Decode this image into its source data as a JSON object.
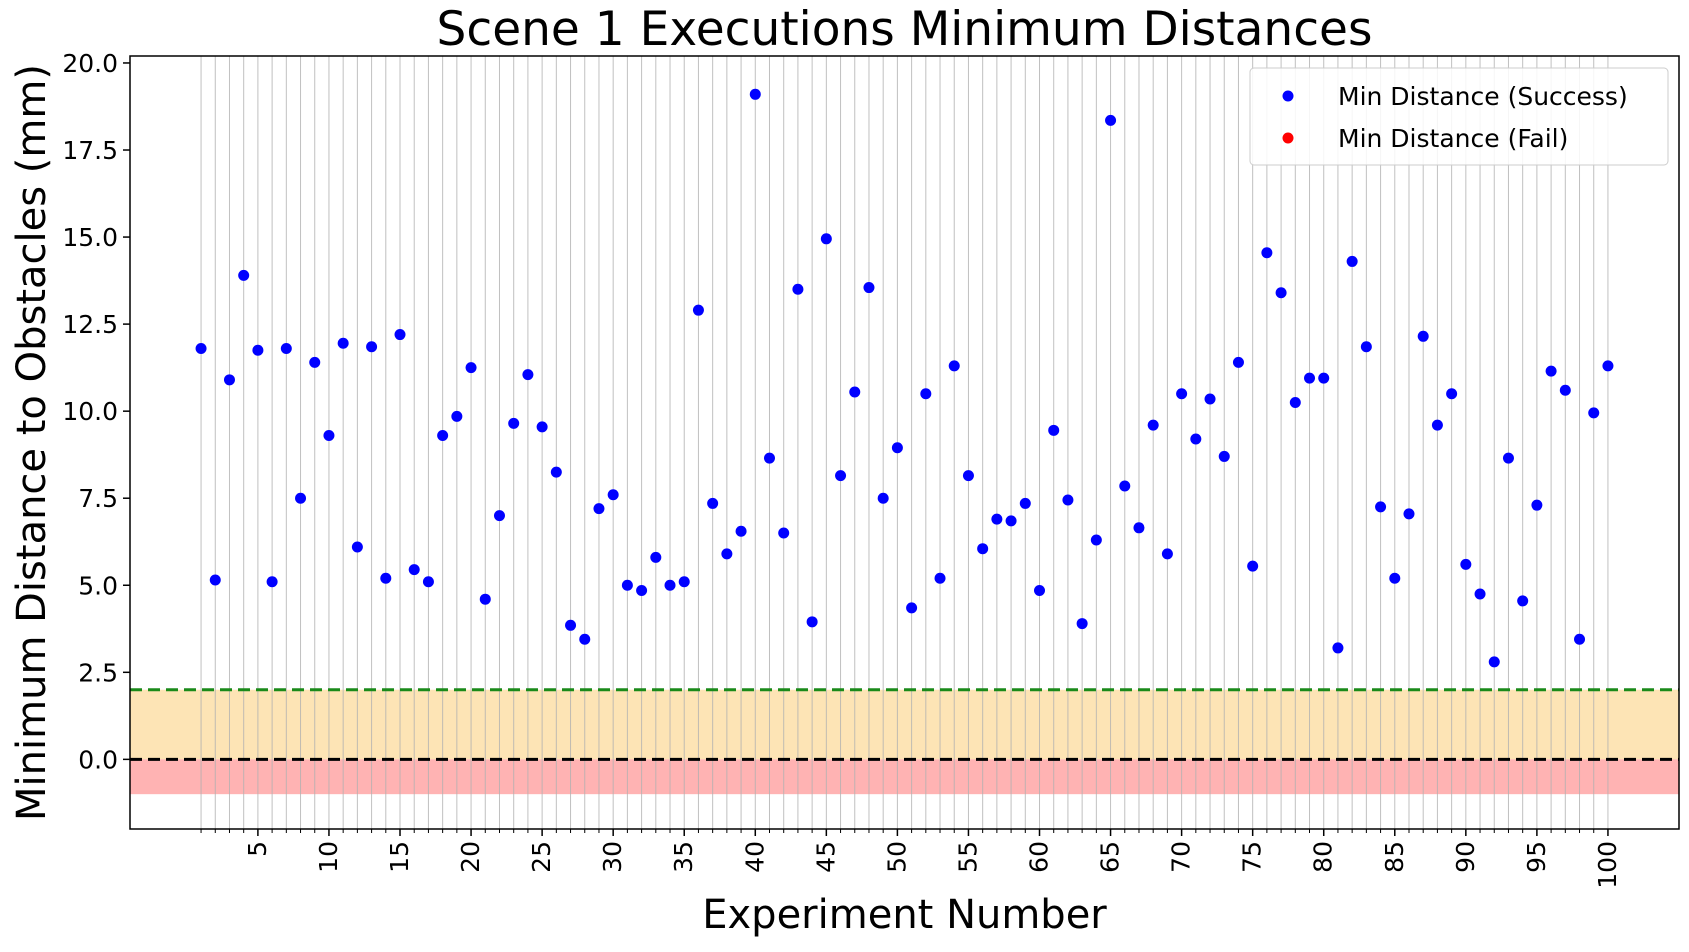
{
  "chart_data": {
    "type": "scatter",
    "title": "Scene 1 Executions Minimum Distances",
    "xlabel": "Experiment Number",
    "ylabel": "Minimum Distance to Obstacles (mm)",
    "xlim": [
      -4,
      105
    ],
    "ylim": [
      -2,
      20.2
    ],
    "yticks": [
      "0.0",
      "2.5",
      "5.0",
      "7.5",
      "10.0",
      "12.5",
      "15.0",
      "17.5",
      "20.0"
    ],
    "ytick_values": [
      0,
      2.5,
      5,
      7.5,
      10,
      12.5,
      15,
      17.5,
      20
    ],
    "xticks": [
      "5",
      "10",
      "15",
      "20",
      "25",
      "30",
      "35",
      "40",
      "45",
      "50",
      "55",
      "60",
      "65",
      "70",
      "75",
      "80",
      "85",
      "90",
      "95",
      "100"
    ],
    "xtick_values": [
      5,
      10,
      15,
      20,
      25,
      30,
      35,
      40,
      45,
      50,
      55,
      60,
      65,
      70,
      75,
      80,
      85,
      90,
      95,
      100
    ],
    "x_grid": "vertical line at every experiment 1-100",
    "legend_position": "top-right",
    "bands": [
      {
        "from": 0,
        "to": 2,
        "color": "#fde4b5"
      },
      {
        "from": -1,
        "to": 0,
        "color": "#ffb3b3"
      }
    ],
    "reference_lines": [
      {
        "y": 2,
        "color": "#1a8a1a",
        "style": "dashed"
      },
      {
        "y": 0,
        "color": "#000000",
        "style": "dashed"
      }
    ],
    "series": [
      {
        "name": "Min Distance (Success)",
        "color": "#0000ff",
        "x": [
          1,
          2,
          3,
          4,
          5,
          6,
          7,
          8,
          9,
          10,
          11,
          12,
          13,
          14,
          15,
          16,
          17,
          18,
          19,
          20,
          21,
          22,
          23,
          24,
          25,
          26,
          27,
          28,
          29,
          30,
          31,
          32,
          33,
          34,
          35,
          36,
          37,
          38,
          39,
          40,
          41,
          42,
          43,
          44,
          45,
          46,
          47,
          48,
          49,
          50,
          51,
          52,
          53,
          54,
          55,
          56,
          57,
          58,
          59,
          60,
          61,
          62,
          63,
          64,
          65,
          66,
          67,
          68,
          69,
          70,
          71,
          72,
          73,
          74,
          75,
          76,
          77,
          78,
          79,
          80,
          81,
          82,
          83,
          84,
          85,
          86,
          87,
          88,
          89,
          90,
          91,
          92,
          93,
          94,
          95,
          96,
          97,
          98,
          99,
          100
        ],
        "y": [
          11.8,
          5.15,
          10.9,
          13.9,
          11.75,
          5.1,
          11.8,
          7.5,
          11.4,
          9.3,
          11.95,
          6.1,
          11.85,
          5.2,
          12.2,
          5.45,
          5.1,
          9.3,
          9.85,
          11.25,
          4.6,
          7,
          9.65,
          11.05,
          9.55,
          8.25,
          3.85,
          3.45,
          7.2,
          7.6,
          5,
          4.85,
          5.8,
          5,
          5.1,
          12.9,
          7.35,
          5.9,
          6.55,
          19.1,
          8.65,
          6.5,
          13.5,
          3.95,
          14.95,
          8.15,
          10.55,
          13.55,
          7.5,
          8.95,
          4.35,
          10.5,
          5.2,
          11.3,
          8.15,
          6.05,
          6.9,
          6.85,
          7.35,
          4.85,
          9.45,
          7.45,
          3.9,
          6.3,
          18.35,
          7.85,
          6.65,
          9.6,
          5.9,
          10.5,
          9.2,
          10.35,
          8.7,
          11.4,
          5.55,
          14.55,
          13.4,
          10.25,
          10.95,
          10.95,
          3.2,
          14.3,
          11.85,
          7.25,
          5.2,
          7.05,
          12.15,
          9.6,
          10.5,
          5.6,
          4.75,
          2.8,
          8.65,
          4.55,
          7.3,
          11.15,
          10.6,
          3.45,
          9.95,
          11.3
        ]
      },
      {
        "name": "Min Distance (Fail)",
        "color": "#ff0000",
        "x": [],
        "y": []
      }
    ]
  }
}
